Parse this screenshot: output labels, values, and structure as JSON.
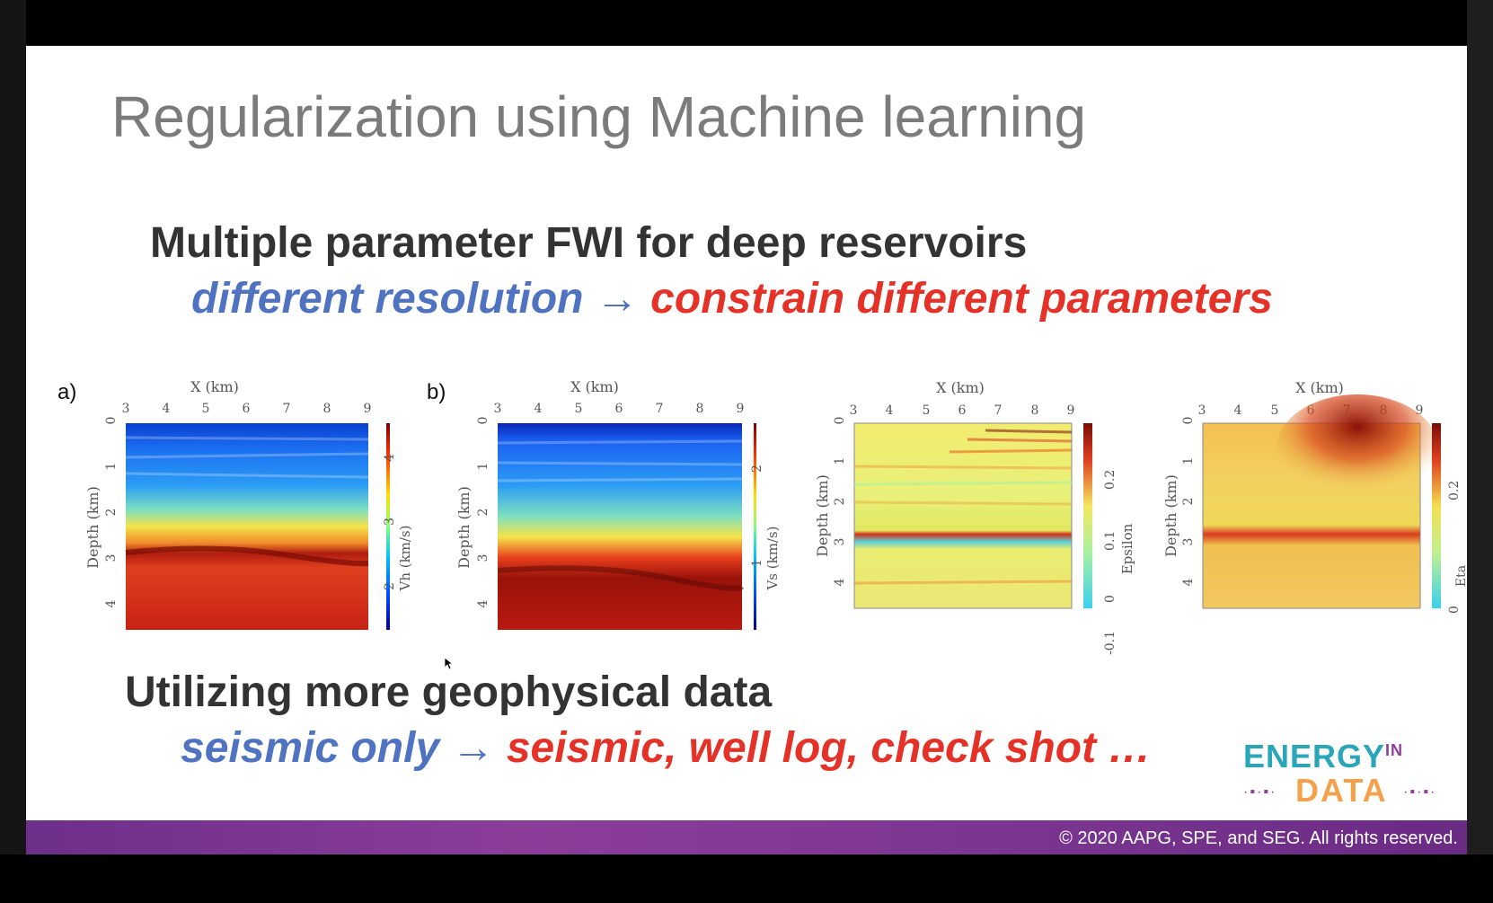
{
  "slide": {
    "title": "Regularization using Machine learning",
    "heading1": "Multiple parameter FWI for deep reservoirs",
    "sub1_blue": "different resolution",
    "sub1_arrow": "→",
    "sub1_red": "constrain different parameters",
    "heading2": "Utilizing more geophysical data",
    "sub2_blue": "seismic only",
    "sub2_arrow": "→",
    "sub2_red": "seismic, well log, check shot …",
    "footer": "© 2020 AAPG, SPE, and SEG. All rights reserved."
  },
  "logo": {
    "top": "ENERGY",
    "top_sup": "IN",
    "bottom": "DATA"
  },
  "panels": [
    {
      "label": "a)",
      "xlabel": "X (km)",
      "ylabel": "Depth (km)",
      "xticks": [
        "3",
        "4",
        "5",
        "6",
        "7",
        "8",
        "9"
      ],
      "yticks": [
        "0",
        "1",
        "2",
        "3",
        "4"
      ],
      "cblabel": "Vh (km/s)",
      "cbticks": [
        "2",
        "3",
        "4"
      ]
    },
    {
      "label": "b)",
      "xlabel": "X (km)",
      "ylabel": "Depth (km)",
      "xticks": [
        "3",
        "4",
        "5",
        "6",
        "7",
        "8",
        "9"
      ],
      "yticks": [
        "0",
        "1",
        "2",
        "3",
        "4"
      ],
      "cblabel": "Vs (km/s)",
      "cbticks": [
        "1",
        "2"
      ]
    },
    {
      "label": "",
      "xlabel": "X (km)",
      "ylabel": "Depth (km)",
      "xticks": [
        "3",
        "4",
        "5",
        "6",
        "7",
        "8",
        "9"
      ],
      "yticks": [
        "0",
        "1",
        "2",
        "3",
        "4"
      ],
      "cblabel": "Epsilon",
      "cbticks": [
        "-0.1",
        "0",
        "0.1",
        "0.2"
      ]
    },
    {
      "label": "",
      "xlabel": "X (km)",
      "ylabel": "Depth (km)",
      "xticks": [
        "3",
        "4",
        "5",
        "6",
        "7",
        "8",
        "9"
      ],
      "yticks": [
        "0",
        "1",
        "2",
        "3",
        "4"
      ],
      "cblabel": "Eta",
      "cbticks": [
        "0",
        "0.2"
      ]
    }
  ]
}
